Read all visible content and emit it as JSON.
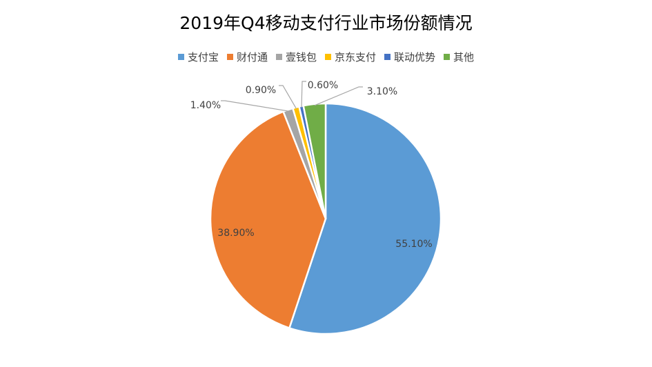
{
  "chart_data": {
    "type": "pie",
    "title": "2019年Q4移动支付行业市场份额情况",
    "legend_position": "top",
    "categories": [
      "支付宝",
      "财付通",
      "壹钱包",
      "京东支付",
      "联动优势",
      "其他"
    ],
    "values": [
      55.1,
      38.9,
      1.4,
      0.9,
      0.6,
      3.1
    ],
    "labels": [
      "55.10%",
      "38.90%",
      "1.40%",
      "0.90%",
      "0.60%",
      "3.10%"
    ],
    "colors": [
      "#5B9BD5",
      "#ED7D31",
      "#A5A5A5",
      "#FFC000",
      "#4472C4",
      "#70AD47"
    ]
  }
}
